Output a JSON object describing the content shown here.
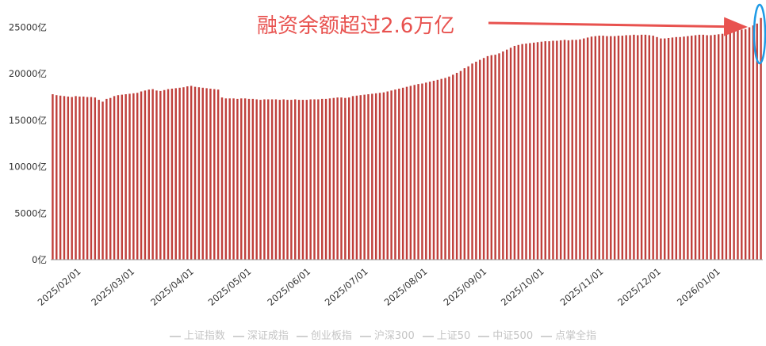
{
  "chart_data": {
    "type": "bar",
    "unit": "亿",
    "ylim": [
      0,
      27000
    ],
    "yticks": [
      {
        "value": 0,
        "label": "0亿"
      },
      {
        "value": 5000,
        "label": "5000亿"
      },
      {
        "value": 10000,
        "label": "10000亿"
      },
      {
        "value": 15000,
        "label": "15000亿"
      },
      {
        "value": 20000,
        "label": "20000亿"
      },
      {
        "value": 25000,
        "label": "25000亿"
      }
    ],
    "xticks": [
      "2025/02/01",
      "2025/03/01",
      "2025/04/01",
      "2025/05/01",
      "2025/06/01",
      "2025/07/01",
      "2025/08/01",
      "2025/09/01",
      "2025/10/01",
      "2025/11/01",
      "2025/12/01",
      "2026/01/01"
    ],
    "bar_color": "#c0403c",
    "values": [
      17800,
      17700,
      17650,
      17600,
      17550,
      17500,
      17600,
      17550,
      17550,
      17500,
      17500,
      17450,
      17200,
      17000,
      17300,
      17400,
      17600,
      17700,
      17750,
      17800,
      17850,
      17900,
      17950,
      18100,
      18200,
      18300,
      18350,
      18200,
      18150,
      18250,
      18350,
      18400,
      18450,
      18500,
      18550,
      18650,
      18700,
      18600,
      18550,
      18500,
      18450,
      18400,
      18350,
      18300,
      17450,
      17350,
      17350,
      17350,
      17300,
      17350,
      17350,
      17300,
      17300,
      17250,
      17200,
      17250,
      17250,
      17250,
      17250,
      17200,
      17250,
      17200,
      17200,
      17250,
      17200,
      17200,
      17200,
      17250,
      17250,
      17250,
      17300,
      17300,
      17350,
      17400,
      17450,
      17450,
      17400,
      17450,
      17600,
      17650,
      17700,
      17750,
      17800,
      17850,
      17900,
      17950,
      18000,
      18100,
      18200,
      18300,
      18400,
      18500,
      18600,
      18700,
      18800,
      18900,
      18950,
      19050,
      19150,
      19250,
      19350,
      19450,
      19550,
      19700,
      19900,
      20100,
      20300,
      20600,
      20800,
      21100,
      21300,
      21500,
      21700,
      21900,
      22000,
      22050,
      22200,
      22400,
      22600,
      22800,
      23000,
      23100,
      23200,
      23250,
      23300,
      23350,
      23400,
      23450,
      23500,
      23500,
      23550,
      23550,
      23600,
      23650,
      23600,
      23650,
      23650,
      23700,
      23800,
      23900,
      24000,
      24050,
      24100,
      24100,
      24050,
      24050,
      24050,
      24100,
      24100,
      24150,
      24150,
      24200,
      24150,
      24200,
      24200,
      24150,
      24100,
      23950,
      23800,
      23800,
      23850,
      23900,
      23950,
      23950,
      24000,
      24050,
      24100,
      24150,
      24200,
      24200,
      24150,
      24150,
      24200,
      24250,
      24300,
      24450,
      24600,
      24650,
      24700,
      24750,
      24800,
      25000,
      25200,
      25400,
      26000
    ],
    "annotation": {
      "text": "融资余额超过2.6万亿"
    },
    "legend": [
      "上证指数",
      "深证成指",
      "创业板指",
      "沪深300",
      "上证50",
      "中证500",
      "点掌全指"
    ]
  }
}
